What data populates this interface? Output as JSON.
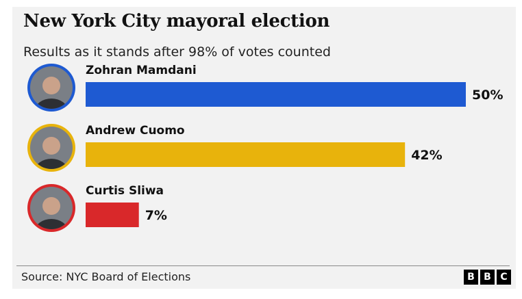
{
  "header": {
    "title": "New York City mayoral election",
    "subtitle": "Results as it stands after 98% of votes counted"
  },
  "footer": {
    "source": "Source: NYC Board of Elections",
    "logo_letters": [
      "B",
      "B",
      "C"
    ]
  },
  "chart_data": {
    "type": "bar",
    "orientation": "horizontal",
    "categories": [
      "Zohran Mamdani",
      "Andrew Cuomo",
      "Curtis Sliwa"
    ],
    "values": [
      50,
      42,
      7
    ],
    "value_labels": [
      "50%",
      "42%",
      "7%"
    ],
    "colors": [
      "#1e5ad2",
      "#e8b30c",
      "#d9282a"
    ],
    "xlim": [
      0,
      50
    ],
    "grid": false,
    "legend": "none"
  }
}
